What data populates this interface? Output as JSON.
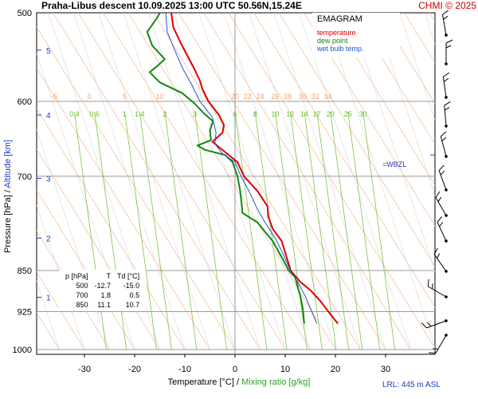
{
  "header": {
    "title": "Praha-Libus   descent   10.09.2025 13:00 UTC   50.56N,15.24E",
    "copyright": "CHMI © 2025"
  },
  "legend": {
    "title": "EMAGRAM",
    "items": [
      {
        "label": "temperature",
        "color": "#dd0000"
      },
      {
        "label": "dew point",
        "color": "#118811"
      },
      {
        "label": "wet bulb temp.",
        "color": "#2255cc"
      }
    ]
  },
  "axes": {
    "xlabel_a": "Temperature [°C]",
    "xlabel_sep": " / ",
    "xlabel_b": "Mixing ratio [g/kg]",
    "ylabel_a": "Pressure [hPa]",
    "ylabel_sep": " / ",
    "ylabel_b": "Altitude [km]"
  },
  "wbzl_label": "WBZL",
  "lrl_label": "LRL: 445 m ASL",
  "data_table": {
    "headers": [
      "p [hPa]",
      "T",
      "Td [°C]"
    ],
    "rows": [
      [
        "500",
        "-12.7",
        "-15.0"
      ],
      [
        "700",
        "1.8",
        "0.5"
      ],
      [
        "850",
        "11.1",
        "10.7"
      ]
    ]
  },
  "chart_data": {
    "type": "line",
    "title": "EMAGRAM",
    "xlabel": "Temperature [°C] / Mixing ratio [g/kg]",
    "ylabel": "Pressure [hPa] / Altitude [km]",
    "xlim": [
      -40,
      40
    ],
    "ylim": [
      1000,
      500
    ],
    "y_scale": "log",
    "x_ticks": [
      -30,
      -20,
      -10,
      0,
      10,
      20,
      30
    ],
    "y_ticks": [
      500,
      600,
      700,
      850,
      925,
      1000
    ],
    "altitude_ticks": [
      1,
      2,
      3,
      4,
      5
    ],
    "altitude_pressures": [
      898,
      795,
      703,
      617,
      540
    ],
    "mixing_ratio_labels": [
      "0.4",
      "0.6",
      "1",
      "1.4",
      "2",
      "3",
      "6",
      "8",
      "10",
      "12",
      "14",
      "17",
      "20",
      "25",
      "30"
    ],
    "mixing_ratio_temps": [
      -32,
      -28,
      -22,
      -19,
      -14,
      -8,
      0,
      4,
      8,
      11,
      13.8,
      16.3,
      19,
      22.5,
      25.5
    ],
    "dry_adiabat_labels": [
      "-5",
      "0",
      "5",
      "10",
      "20",
      "22",
      "24",
      "26",
      "28",
      "30",
      "32",
      "34"
    ],
    "dry_adiabat_temps": [
      -36,
      -29,
      -22,
      -15,
      0,
      2.5,
      5,
      8,
      10.5,
      13.5,
      16,
      18.5
    ],
    "wbzl_pressure": 670,
    "series": [
      {
        "name": "temperature",
        "color": "#dd0000",
        "points": [
          [
            -12.7,
            500
          ],
          [
            -12.3,
            515
          ],
          [
            -11.0,
            530
          ],
          [
            -9.6,
            545
          ],
          [
            -8.2,
            560
          ],
          [
            -7.0,
            575
          ],
          [
            -6.5,
            585
          ],
          [
            -5.3,
            600
          ],
          [
            -3.2,
            617
          ],
          [
            -2.2,
            630
          ],
          [
            -2.5,
            640
          ],
          [
            -4.5,
            652
          ],
          [
            -1.8,
            667
          ],
          [
            0.5,
            680
          ],
          [
            1.8,
            700
          ],
          [
            4.5,
            722
          ],
          [
            6.5,
            745
          ],
          [
            6.6,
            760
          ],
          [
            7.5,
            780
          ],
          [
            9.3,
            800
          ],
          [
            11.1,
            850
          ],
          [
            13.0,
            870
          ],
          [
            15.0,
            885
          ],
          [
            17.0,
            905
          ],
          [
            19.0,
            930
          ],
          [
            20.5,
            948
          ]
        ]
      },
      {
        "name": "dew point",
        "color": "#118811",
        "points": [
          [
            -15.0,
            500
          ],
          [
            -15.5,
            505
          ],
          [
            -17.5,
            520
          ],
          [
            -16.5,
            535
          ],
          [
            -14.0,
            550
          ],
          [
            -15.5,
            558
          ],
          [
            -17.0,
            565
          ],
          [
            -15.0,
            577
          ],
          [
            -10.5,
            590
          ],
          [
            -8.0,
            603
          ],
          [
            -6.2,
            615
          ],
          [
            -4.4,
            625
          ],
          [
            -5.0,
            637
          ],
          [
            -4.8,
            650
          ],
          [
            -7.5,
            657
          ],
          [
            -6.0,
            663
          ],
          [
            -2.0,
            670
          ],
          [
            -0.5,
            680
          ],
          [
            0.5,
            700
          ],
          [
            1.0,
            720
          ],
          [
            1.3,
            740
          ],
          [
            1.5,
            755
          ],
          [
            4.5,
            770
          ],
          [
            6.0,
            785
          ],
          [
            7.5,
            800
          ],
          [
            9.5,
            830
          ],
          [
            10.7,
            850
          ],
          [
            12.0,
            862
          ],
          [
            12.5,
            880
          ],
          [
            13.0,
            895
          ],
          [
            13.5,
            920
          ],
          [
            13.8,
            948
          ]
        ]
      },
      {
        "name": "wet bulb temp.",
        "color": "#2255cc",
        "points": [
          [
            -13.8,
            500
          ],
          [
            -13.5,
            520
          ],
          [
            -12.0,
            540
          ],
          [
            -10.5,
            560
          ],
          [
            -8.6,
            580
          ],
          [
            -7.0,
            600
          ],
          [
            -4.5,
            620
          ],
          [
            -3.8,
            640
          ],
          [
            -4.0,
            655
          ],
          [
            -2.5,
            668
          ],
          [
            0.0,
            680
          ],
          [
            1.2,
            700
          ],
          [
            3.0,
            725
          ],
          [
            4.5,
            750
          ],
          [
            6.0,
            770
          ],
          [
            8.0,
            795
          ],
          [
            9.5,
            820
          ],
          [
            11.0,
            850
          ],
          [
            12.8,
            875
          ],
          [
            14.2,
            900
          ],
          [
            15.3,
            925
          ],
          [
            16.3,
            948
          ]
        ]
      }
    ]
  }
}
